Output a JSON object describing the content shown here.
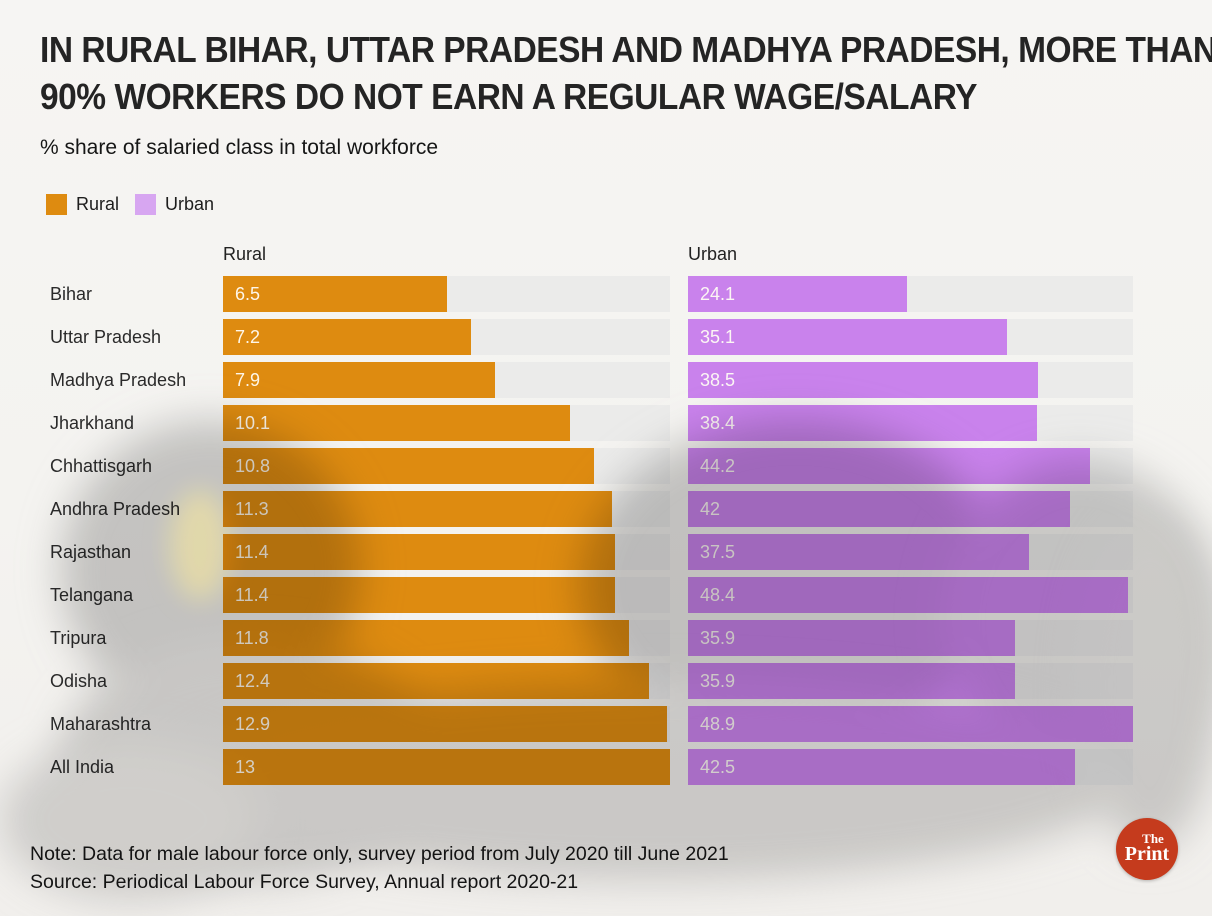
{
  "page": {
    "title_lines": [
      "IN RURAL BIHAR, UTTAR PRADESH AND MADHYA PRADESH, MORE THAN",
      "90% WORKERS DO NOT EARN A REGULAR WAGE/SALARY"
    ],
    "subtitle": "% share of salaried class in total workforce",
    "note": "Note: Data for male labour force only, survey period from July 2020 till June 2021",
    "source": "Source: Periodical Labour Force Survey, Annual report 2020-21"
  },
  "legend": {
    "items": [
      {
        "label": "Rural",
        "color": "#de8b10"
      },
      {
        "label": "Urban",
        "color": "#d7a6f1"
      }
    ]
  },
  "chart_data": {
    "type": "bar",
    "orientation": "horizontal",
    "title": "% share of salaried class in total workforce",
    "categories": [
      "Bihar",
      "Uttar Pradesh",
      "Madhya Pradesh",
      "Jharkhand",
      "Chhattisgarh",
      "Andhra Pradesh",
      "Rajasthan",
      "Telangana",
      "Tripura",
      "Odisha",
      "Maharashtra",
      "All India"
    ],
    "panel_headers": [
      "Rural",
      "Urban"
    ],
    "series": [
      {
        "name": "Rural",
        "color": "#de8b10",
        "panel_max": 13,
        "values": [
          6.5,
          7.2,
          7.9,
          10.1,
          10.8,
          11.3,
          11.4,
          11.4,
          11.8,
          12.4,
          12.9,
          13
        ]
      },
      {
        "name": "Urban",
        "color": "#c982ec",
        "panel_max": 48.9,
        "values": [
          24.1,
          35.1,
          38.5,
          38.4,
          44.2,
          42,
          37.5,
          48.4,
          35.9,
          35.9,
          48.9,
          42.5
        ]
      }
    ],
    "track_color": "#eaeaea",
    "value_labels_position": "inside-left",
    "grid": false,
    "scaling": "each panel scaled independently to its series maximum"
  },
  "logo": {
    "brand_line1": "The",
    "brand_line2": "Print",
    "color": "#c53b1d"
  }
}
